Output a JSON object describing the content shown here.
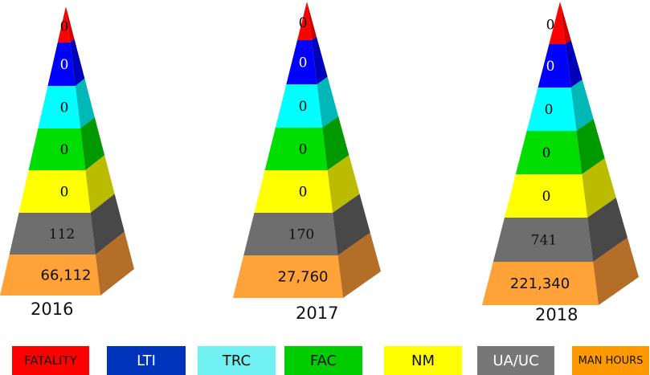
{
  "chart_data": {
    "type": "pyramid",
    "title": "",
    "categories": [
      "FATALITY",
      "LTI",
      "TRC",
      "FAC",
      "NM",
      "UA/UC",
      "MAN HOURS"
    ],
    "years": [
      "2016",
      "2017",
      "2018"
    ],
    "series": [
      {
        "name": "2016",
        "values": [
          0,
          0,
          0,
          0,
          0,
          112,
          66112
        ],
        "labels": [
          "0",
          "0",
          "0",
          "0",
          "0",
          "112",
          "66,112"
        ]
      },
      {
        "name": "2017",
        "values": [
          0,
          0,
          0,
          0,
          0,
          170,
          27760
        ],
        "labels": [
          "0",
          "0",
          "0",
          "0",
          "0",
          "170",
          "27,760"
        ]
      },
      {
        "name": "2018",
        "values": [
          0,
          0,
          0,
          0,
          0,
          741,
          221340
        ],
        "labels": [
          "0",
          "0",
          "0",
          "0",
          "0",
          "741",
          "221,340"
        ]
      }
    ],
    "colors": {
      "FATALITY": "#ff0000",
      "LTI": "#0000ff",
      "TRC": "#00ffff",
      "FAC": "#00dd00",
      "NM": "#ffff00",
      "UA/UC": "#6e6e6e",
      "MAN HOURS": "#ffa238"
    },
    "legend_position": "bottom"
  },
  "years": {
    "y2016": "2016",
    "y2017": "2017",
    "y2018": "2018"
  },
  "legend": [
    {
      "label": "FATALITY",
      "bg": "#ff0000",
      "fg": "#111111"
    },
    {
      "label": "LTI",
      "bg": "#0033bb",
      "fg": "#ffffff"
    },
    {
      "label": "TRC",
      "bg": "#70f0f0",
      "fg": "#111111"
    },
    {
      "label": "FAC",
      "bg": "#00cc00",
      "fg": "#111111"
    },
    {
      "label": "NM",
      "bg": "#ffff00",
      "fg": "#111111"
    },
    {
      "label": "UA/UC",
      "bg": "#777777",
      "fg": "#ffffff"
    },
    {
      "label": "MAN HOURS",
      "bg": "#ff9900",
      "fg": "#111111"
    }
  ]
}
